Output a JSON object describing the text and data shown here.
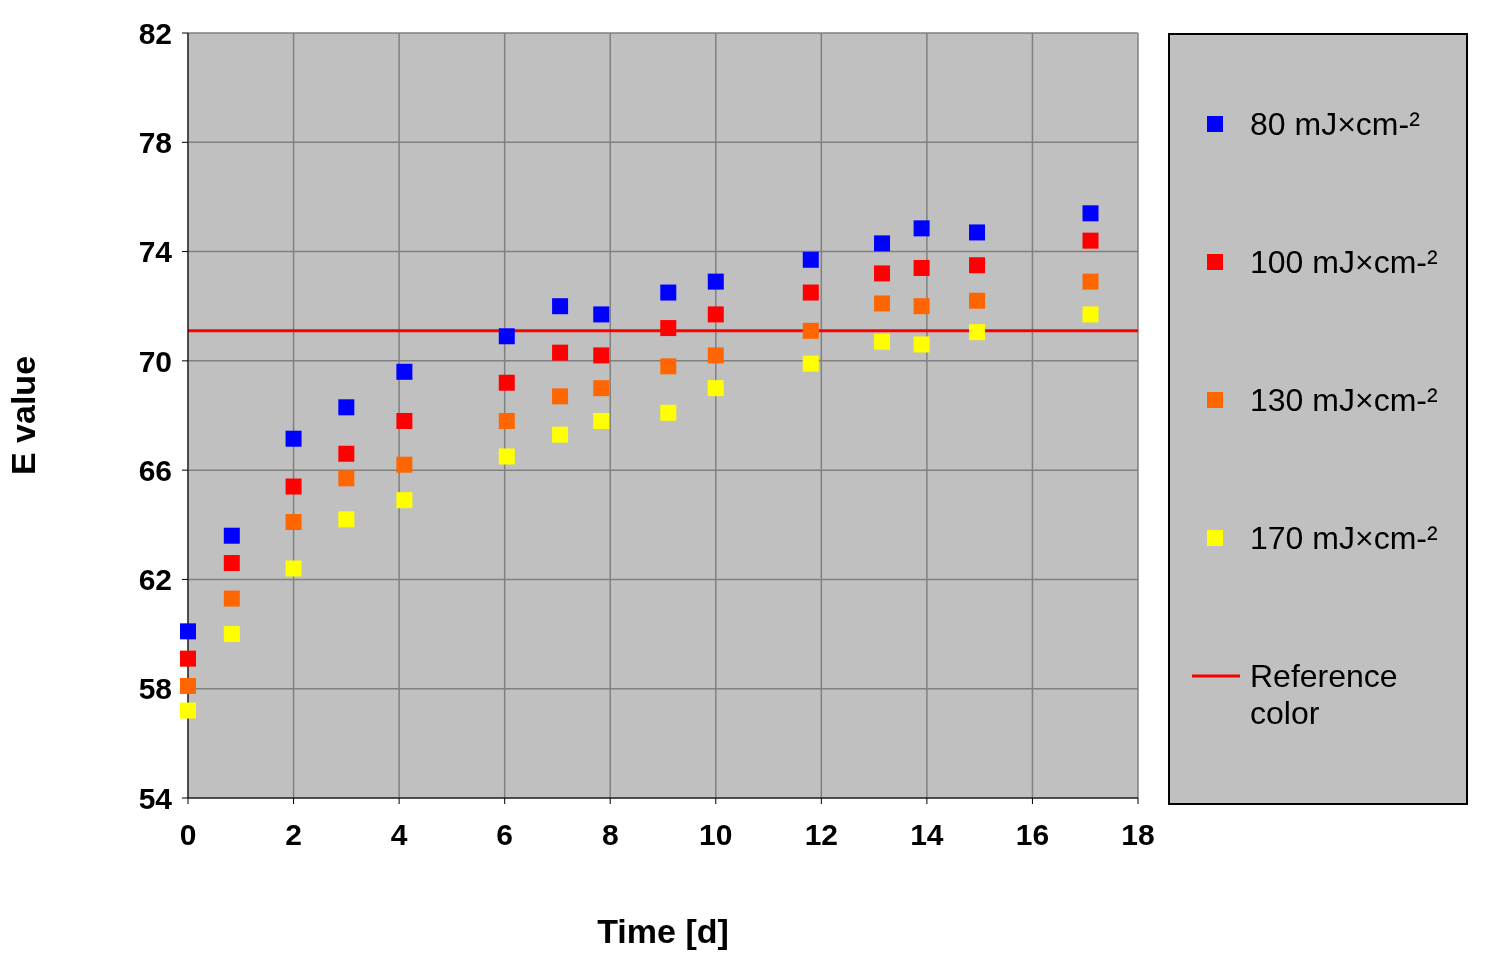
{
  "chart_data": {
    "type": "scatter",
    "xlabel": "Time [d]",
    "ylabel": "E value",
    "x": [
      0,
      0.83,
      2,
      3,
      4.1,
      6.04,
      7.05,
      7.83,
      9.1,
      10,
      11.8,
      13.15,
      13.9,
      14.95,
      17.1
    ],
    "series": [
      {
        "name": "80 mJ×cm-²",
        "color": "#0000ff",
        "values": [
          60.1,
          63.6,
          67.15,
          68.3,
          69.6,
          70.9,
          72.0,
          71.7,
          72.5,
          72.9,
          73.7,
          74.3,
          74.85,
          74.7,
          75.4
        ]
      },
      {
        "name": "100 mJ×cm-²",
        "color": "#ff0000",
        "values": [
          59.1,
          62.6,
          65.4,
          66.6,
          67.8,
          69.2,
          70.3,
          70.2,
          71.2,
          71.7,
          72.5,
          73.2,
          73.4,
          73.5,
          74.4
        ]
      },
      {
        "name": "130 mJ×cm-²",
        "color": "#ff6600",
        "values": [
          58.1,
          61.3,
          64.1,
          65.7,
          66.2,
          67.8,
          68.7,
          69.0,
          69.8,
          70.2,
          71.1,
          72.1,
          72.0,
          72.2,
          72.9
        ]
      },
      {
        "name": "170 mJ×cm-²",
        "color": "#ffff00",
        "values": [
          57.2,
          60.0,
          62.4,
          64.2,
          64.9,
          66.5,
          67.3,
          67.8,
          68.1,
          69.0,
          69.9,
          70.7,
          70.6,
          71.05,
          71.7
        ]
      }
    ],
    "ref_lines": [
      {
        "axis": "y",
        "value": 71.1,
        "label": "Reference color",
        "color": "#ff0000"
      }
    ],
    "xlim": [
      0,
      18
    ],
    "xticks": [
      0,
      2,
      4,
      6,
      8,
      10,
      12,
      14,
      16,
      18
    ],
    "ylim": [
      54,
      82
    ],
    "yticks": [
      54,
      58,
      62,
      66,
      70,
      74,
      78,
      82
    ],
    "grid": true,
    "legend": "right",
    "marker": "square"
  }
}
